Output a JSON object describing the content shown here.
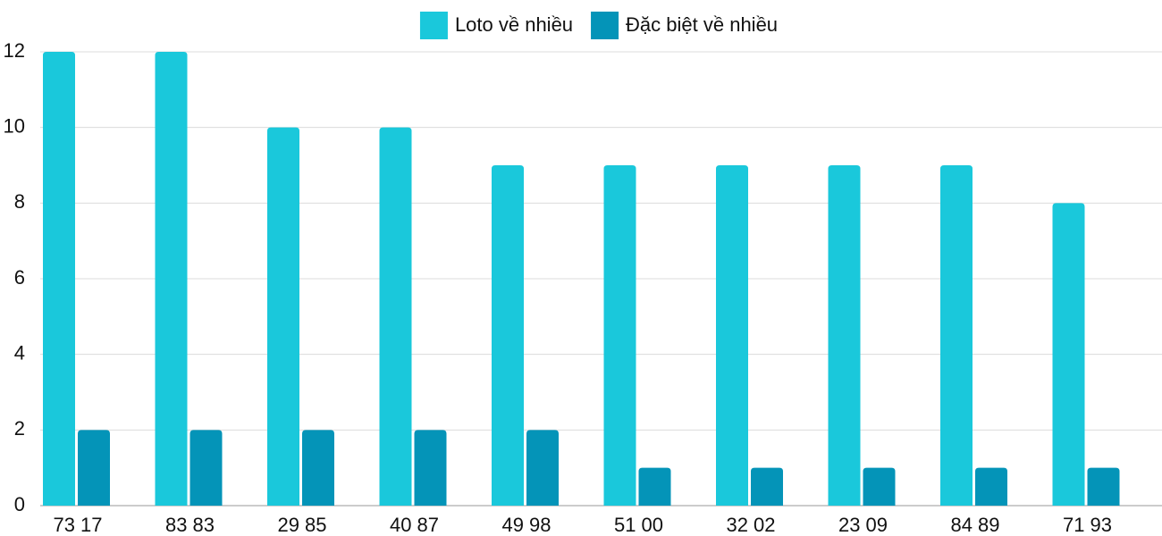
{
  "chart_data": {
    "type": "bar",
    "categories": [
      "73 17",
      "83 83",
      "29 85",
      "40 87",
      "49 98",
      "51 00",
      "32 02",
      "23 09",
      "84 89",
      "71 93"
    ],
    "series": [
      {
        "name": "Loto về nhiều",
        "color": "#1ac8db",
        "values": [
          12,
          12,
          10,
          10,
          9,
          9,
          9,
          9,
          9,
          8
        ]
      },
      {
        "name": "Đặc biệt về nhiều",
        "color": "#0494b8",
        "values": [
          2,
          2,
          2,
          2,
          2,
          1,
          1,
          1,
          1,
          1
        ]
      }
    ],
    "ylim": [
      0,
      12
    ],
    "yticks": [
      0,
      2,
      4,
      6,
      8,
      10,
      12
    ],
    "grid": true,
    "legend": "top"
  }
}
